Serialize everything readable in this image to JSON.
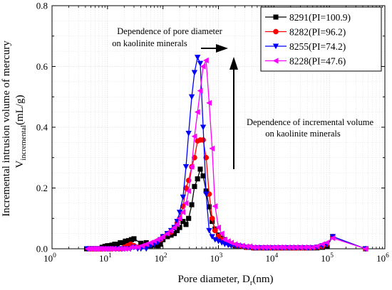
{
  "chart_data": {
    "type": "line",
    "x_scale": "log",
    "xlim": [
      1,
      1000000
    ],
    "ylim": [
      0,
      0.8
    ],
    "grid": true,
    "legend_position": "top-right",
    "xlabel": "Pore diameter, D",
    "xlabel_sub": "r",
    "xlabel_unit": "(nm)",
    "ylabel_prefix": "Incremental intrusion volume of mercury",
    "ylabel_V": "V",
    "ylabel_sub": "incremental",
    "ylabel_unit": "(mL/g)",
    "x_tick_labels": [
      {
        "base": "10",
        "exp": "0"
      },
      {
        "base": "10",
        "exp": "1"
      },
      {
        "base": "10",
        "exp": "2"
      },
      {
        "base": "10",
        "exp": "3"
      },
      {
        "base": "10",
        "exp": "4"
      },
      {
        "base": "10",
        "exp": "5"
      },
      {
        "base": "10",
        "exp": "6"
      }
    ],
    "y_ticks": [
      0.0,
      0.2,
      0.4,
      0.6,
      0.8
    ],
    "y_tick_labels": [
      "0.0",
      "0.2",
      "0.4",
      "0.6",
      "0.8"
    ],
    "annotations": [
      {
        "lines": [
          "Dependence of pore diameter",
          "on kaolinite minerals"
        ]
      },
      {
        "lines": [
          "Dependence of incremental volume",
          "on kaolinite minerals"
        ]
      }
    ],
    "series": [
      {
        "name": "8291(PI=100.9)",
        "color": "#000000",
        "marker": "square",
        "x": [
          4.2,
          4.6,
          5,
          5.5,
          6,
          6.6,
          7.3,
          8,
          9,
          10,
          11,
          12,
          13.5,
          15,
          17,
          19,
          21,
          24,
          27,
          30,
          40,
          50,
          60,
          70,
          80,
          90,
          100,
          120,
          140,
          160,
          180,
          200,
          230,
          260,
          290,
          330,
          370,
          420,
          470,
          530,
          600,
          680,
          770,
          870,
          1000,
          1150,
          1300,
          1500,
          1700,
          2000,
          2300,
          2700,
          3200,
          3700,
          4300,
          5000,
          6000,
          7000,
          8000,
          9500,
          11000,
          13000,
          15000,
          18000,
          21000,
          25000,
          30000,
          36000,
          42000,
          50000,
          60000,
          75000,
          90000,
          115000,
          450000
        ],
        "y": [
          0,
          0,
          0,
          0,
          0,
          0,
          0,
          0.005,
          0.008,
          0.01,
          0.01,
          0.012,
          0.015,
          0.015,
          0.02,
          0.02,
          0.025,
          0.027,
          0.03,
          0.033,
          0.018,
          0.02,
          0.01,
          0.012,
          0.01,
          0.015,
          0.03,
          0.04,
          0.045,
          0.05,
          0.06,
          0.07,
          0.09,
          0.08,
          0.1,
          0.145,
          0.205,
          0.23,
          0.262,
          0.24,
          0.19,
          0.138,
          0.09,
          0.065,
          0.045,
          0.035,
          0.03,
          0.02,
          0.015,
          0.01,
          0.01,
          0.008,
          0.005,
          0.005,
          0.003,
          0.003,
          0.003,
          0.003,
          0.003,
          0.003,
          0.003,
          0.003,
          0.003,
          0.003,
          0.003,
          0.003,
          0.003,
          0.003,
          0.003,
          0.003,
          0.003,
          0.005,
          0.008,
          0.04,
          0
        ]
      },
      {
        "name": "8282(PI=96.2)",
        "color": "#ff0000",
        "marker": "circle",
        "x": [
          4.5,
          5,
          5.5,
          6,
          6.5,
          7,
          7.5,
          8,
          9,
          10,
          11,
          12,
          14,
          16,
          18,
          20,
          23,
          26,
          30,
          35,
          40,
          50,
          60,
          70,
          80,
          90,
          100,
          120,
          140,
          160,
          180,
          200,
          230,
          260,
          290,
          330,
          370,
          420,
          470,
          530,
          600,
          680,
          770,
          870,
          1000,
          1150,
          1300,
          1500,
          1700,
          2000,
          2300,
          2700,
          3200,
          3700,
          4300,
          5000,
          6000,
          7000,
          8000,
          9500,
          11000,
          13000,
          15000,
          18000,
          21000,
          25000,
          30000,
          36000,
          42000,
          50000,
          60000,
          75000,
          90000,
          115000,
          450000
        ],
        "y": [
          0,
          0,
          0,
          0,
          0,
          0,
          0,
          0,
          0,
          0,
          0,
          0,
          0,
          0,
          0,
          0.005,
          0.01,
          0.015,
          0.01,
          0.005,
          0.005,
          0.01,
          0.015,
          0.02,
          0.025,
          0.03,
          0.04,
          0.05,
          0.055,
          0.07,
          0.085,
          0.1,
          0.14,
          0.2,
          0.225,
          0.27,
          0.3,
          0.355,
          0.358,
          0.358,
          0.3,
          0.18,
          0.1,
          0.06,
          0.04,
          0.03,
          0.025,
          0.02,
          0.015,
          0.012,
          0.01,
          0.008,
          0.005,
          0.005,
          0.003,
          0.003,
          0.003,
          0.003,
          0.003,
          0.003,
          0.003,
          0.003,
          0.003,
          0.003,
          0.003,
          0.003,
          0.003,
          0.003,
          0.003,
          0.003,
          0.005,
          0.008,
          0.015,
          0.04,
          0
        ]
      },
      {
        "name": "8255(PI=74.2)",
        "color": "#0000ff",
        "marker": "triangle-down",
        "x": [
          4.3,
          4.8,
          5.3,
          5.8,
          6.3,
          6.9,
          7.6,
          8.3,
          9.2,
          10,
          11,
          12.5,
          14,
          16,
          18,
          20,
          23,
          26,
          30,
          35,
          40,
          50,
          60,
          70,
          80,
          90,
          100,
          120,
          140,
          160,
          180,
          200,
          230,
          260,
          290,
          330,
          370,
          420,
          470,
          530,
          600,
          680,
          770,
          870,
          1000,
          1150,
          1300,
          1500,
          1700,
          2000,
          2300,
          2700,
          3200,
          3700,
          4300,
          5000,
          6000,
          7000,
          8000,
          9500,
          11000,
          13000,
          15000,
          18000,
          21000,
          25000,
          30000,
          36000,
          42000,
          50000,
          60000,
          75000,
          90000,
          115000,
          450000
        ],
        "y": [
          0,
          0,
          0,
          0,
          0,
          0,
          0,
          0,
          0,
          0,
          0,
          0,
          0,
          0,
          0,
          0,
          0,
          0,
          0.005,
          0,
          0,
          0,
          0.01,
          0.015,
          0.02,
          0.03,
          0.04,
          0.05,
          0.06,
          0.07,
          0.09,
          0.12,
          0.17,
          0.27,
          0.38,
          0.5,
          0.58,
          0.63,
          0.61,
          0.4,
          0.18,
          0.06,
          0.04,
          0.03,
          0.025,
          0.02,
          0.015,
          0.012,
          0.01,
          0.01,
          0.01,
          0.008,
          0.005,
          0.005,
          0.003,
          0.003,
          0.003,
          0.003,
          0.003,
          0.003,
          0.003,
          0.003,
          0.003,
          0.003,
          0.003,
          0.003,
          0.003,
          0.003,
          0.003,
          0.003,
          0.005,
          0.01,
          0.015,
          0.04,
          0
        ]
      },
      {
        "name": "8228(PI=47.6)",
        "color": "#ff00ff",
        "marker": "triangle-left",
        "x": [
          4.4,
          4.9,
          5.4,
          5.9,
          6.4,
          7,
          7.7,
          8.5,
          9.5,
          10.5,
          11.5,
          13,
          15,
          17,
          19,
          21,
          24,
          27,
          31,
          36,
          42,
          50,
          60,
          70,
          80,
          90,
          100,
          120,
          140,
          160,
          180,
          200,
          230,
          260,
          290,
          330,
          370,
          420,
          470,
          530,
          600,
          680,
          770,
          870,
          1000,
          1150,
          1300,
          1500,
          1700,
          2000,
          2300,
          2700,
          3200,
          3700,
          4300,
          5000,
          6000,
          7000,
          8000,
          9500,
          11000,
          13000,
          15000,
          18000,
          21000,
          25000,
          30000,
          36000,
          42000,
          50000,
          60000,
          75000,
          90000,
          115000,
          450000
        ],
        "y": [
          0,
          0,
          0,
          0,
          0,
          0,
          0,
          0,
          0,
          0,
          0,
          0,
          0,
          0,
          0,
          0,
          0,
          0.005,
          0.005,
          0.005,
          0.01,
          0.015,
          0.02,
          0.025,
          0.03,
          0.035,
          0.04,
          0.05,
          0.06,
          0.07,
          0.08,
          0.1,
          0.12,
          0.15,
          0.19,
          0.27,
          0.37,
          0.45,
          0.52,
          0.6,
          0.62,
          0.48,
          0.33,
          0.14,
          0.07,
          0.05,
          0.03,
          0.025,
          0.02,
          0.015,
          0.012,
          0.01,
          0.008,
          0.008,
          0.005,
          0.005,
          0.005,
          0.005,
          0.005,
          0.005,
          0.005,
          0.005,
          0.005,
          0.005,
          0.005,
          0.005,
          0.005,
          0.005,
          0.005,
          0.005,
          0.008,
          0.015,
          0.02,
          0.035,
          0
        ]
      }
    ]
  }
}
